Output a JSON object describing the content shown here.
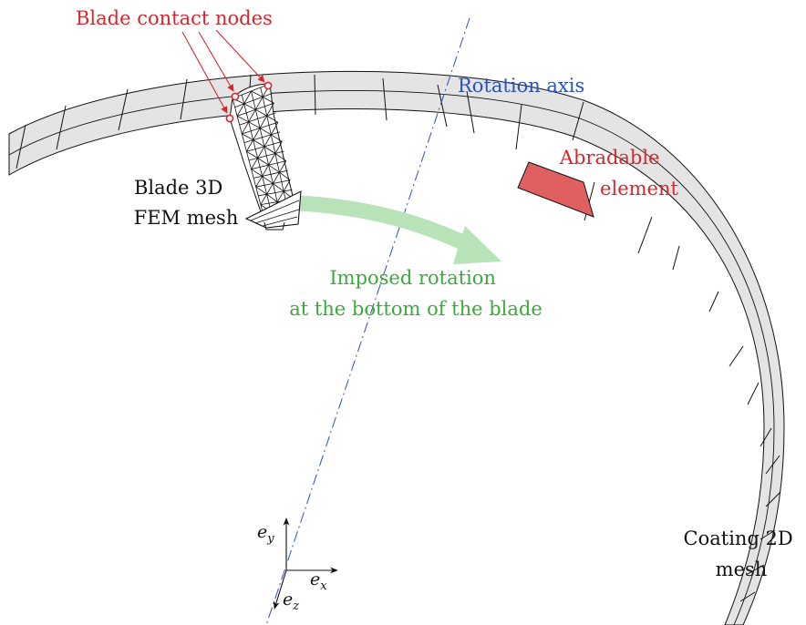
{
  "labels": {
    "blade_contact_nodes": "Blade contact nodes",
    "rotation_axis": "Rotation axis",
    "abradable_line1": "Abradable",
    "abradable_line2": "element",
    "blade_mesh_line1": "Blade 3D",
    "blade_mesh_line2": "FEM mesh",
    "imposed_line1": "Imposed rotation",
    "imposed_line2": "at the bottom of the blade",
    "coating_line1": "Coating 2D",
    "coating_line2": "mesh"
  },
  "axes": {
    "ey_base": "e",
    "ey_sub": "y",
    "ex_base": "e",
    "ex_sub": "x",
    "ez_base": "e",
    "ez_sub": "z"
  },
  "colors": {
    "contact": "#d8262d",
    "axis": "#2a52b8",
    "rotation": "#3aaa3a",
    "ring_fill": "#e4e4e4",
    "abradable_fill": "#e06060"
  }
}
